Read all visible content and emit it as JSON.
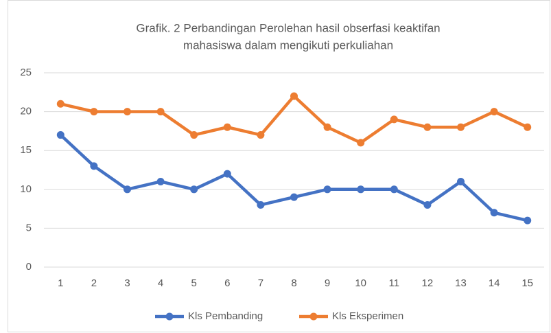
{
  "chart_data": {
    "type": "line",
    "title": [
      "Grafik. 2  Perbandingan Perolehan hasil obserfasi keaktifan",
      "mahasiswa dalam mengikuti perkuliahan"
    ],
    "categories": [
      "1",
      "2",
      "3",
      "4",
      "5",
      "6",
      "7",
      "8",
      "9",
      "10",
      "11",
      "12",
      "13",
      "14",
      "15"
    ],
    "series": [
      {
        "name": "Kls Pembanding",
        "color": "#4472c4",
        "values": [
          17,
          13,
          10,
          11,
          10,
          12,
          8,
          9,
          10,
          10,
          10,
          8,
          11,
          7,
          6
        ]
      },
      {
        "name": "Kls Eksperimen",
        "color": "#ed7d31",
        "values": [
          21,
          20,
          20,
          20,
          17,
          18,
          17,
          22,
          18,
          16,
          19,
          18,
          18,
          20,
          18
        ]
      }
    ],
    "ylim": [
      0,
      25
    ],
    "yticks": [
      0,
      5,
      10,
      15,
      20,
      25
    ],
    "grid": true,
    "legend": "bottom"
  }
}
